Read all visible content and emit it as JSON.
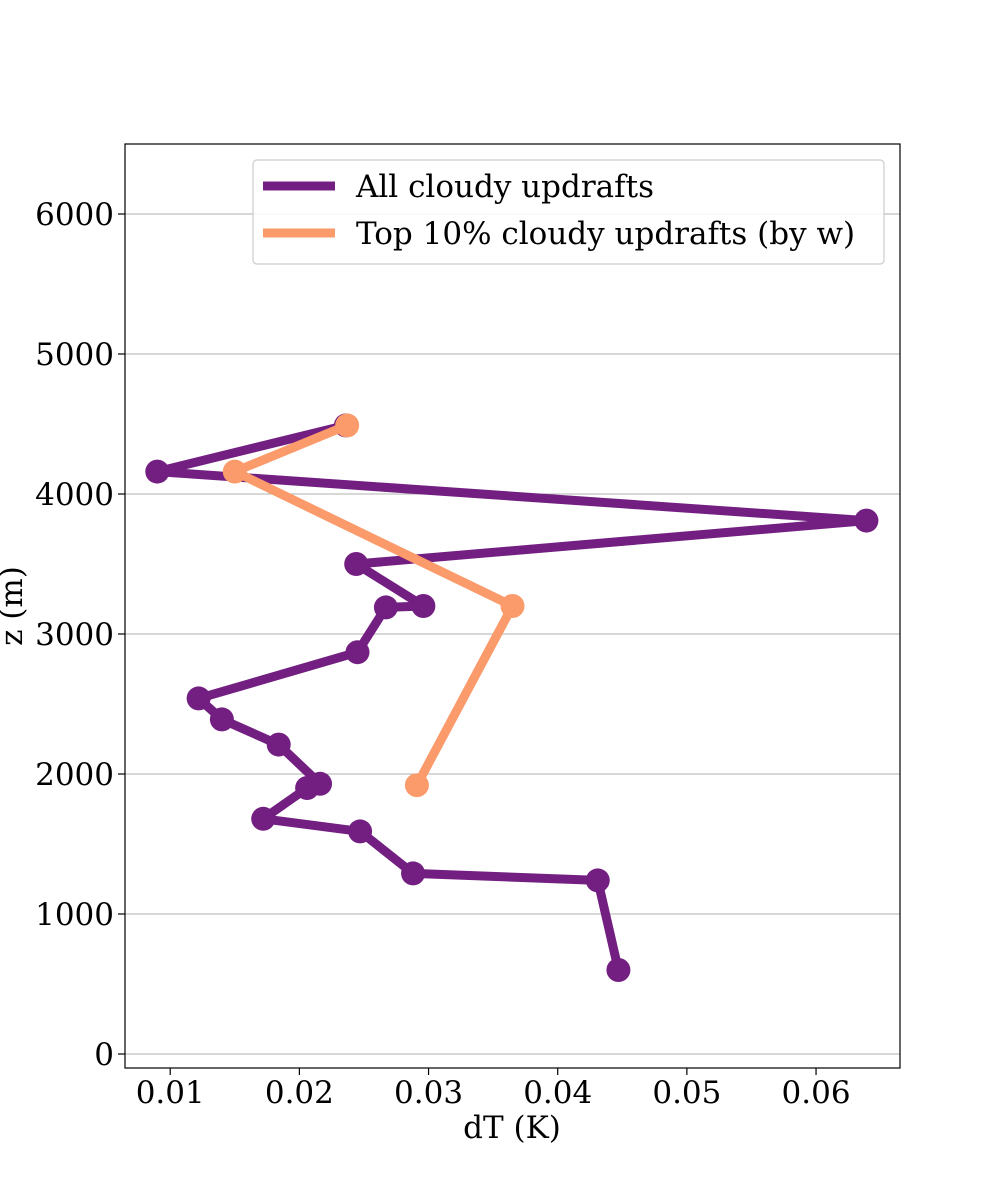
{
  "chart_data": {
    "type": "line",
    "title": "",
    "xlabel": "dT (K)",
    "ylabel": "z (m)",
    "xlim": [
      0.0065,
      0.0665
    ],
    "ylim": [
      -100,
      6500
    ],
    "xticks": [
      0.01,
      0.02,
      0.03,
      0.04,
      0.05,
      0.06
    ],
    "xtick_labels": [
      "0.01",
      "0.02",
      "0.03",
      "0.04",
      "0.05",
      "0.06"
    ],
    "yticks": [
      0,
      1000,
      2000,
      3000,
      4000,
      5000,
      6000
    ],
    "ytick_labels": [
      "0",
      "1000",
      "2000",
      "3000",
      "4000",
      "5000",
      "6000"
    ],
    "grid": "horizontal",
    "legend_position": "top-right",
    "series": [
      {
        "name": "All cloudy updrafts",
        "color": "#721f81",
        "x": [
          0.0447,
          0.0431,
          0.0288,
          0.0247,
          0.0172,
          0.0206,
          0.0216,
          0.0184,
          0.014,
          0.0122,
          0.0245,
          0.0267,
          0.0296,
          0.0244,
          0.0639,
          0.009,
          0.0236
        ],
        "y": [
          600,
          1240,
          1290,
          1590,
          1680,
          1900,
          1930,
          2210,
          2390,
          2540,
          2870,
          3190,
          3200,
          3500,
          3810,
          4160,
          4490
        ]
      },
      {
        "name": "Top 10% cloudy updrafts (by w)",
        "color": "#fb9a6a",
        "x": [
          0.0291,
          0.0365,
          0.015,
          0.0237
        ],
        "y": [
          1920,
          3200,
          4160,
          4490
        ]
      }
    ]
  }
}
